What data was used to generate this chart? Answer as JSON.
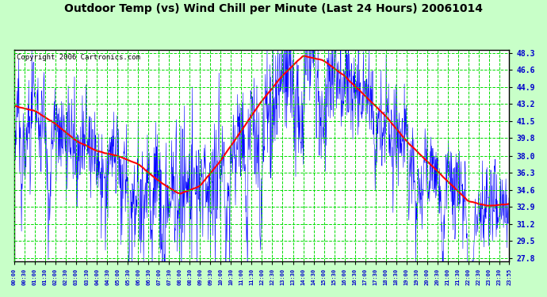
{
  "title": "Outdoor Temp (vs) Wind Chill per Minute (Last 24 Hours) 20061014",
  "copyright_text": "Copyright 2006 Cartronics.com",
  "yticks": [
    27.8,
    29.5,
    31.2,
    32.9,
    34.6,
    36.3,
    38.0,
    39.8,
    41.5,
    43.2,
    44.9,
    46.6,
    48.3
  ],
  "ylim_low": 27.8,
  "ylim_high": 48.3,
  "bg_color": "#ffffff",
  "outer_bg": "#c8ffc8",
  "grid_color": "#00dd00",
  "title_fontsize": 10,
  "copyright_fontsize": 6.5,
  "tick_label_color": "#0000cc",
  "line_blue_color": "#0000ff",
  "line_red_color": "#ff0000",
  "n_minutes": 1440,
  "seed": 42,
  "red_ctrl_hours": [
    0,
    1,
    2,
    3,
    4,
    5,
    6,
    7,
    8,
    9,
    10,
    11,
    12,
    13,
    14,
    15,
    16,
    17,
    18,
    19,
    20,
    21,
    22,
    23,
    24
  ],
  "red_ctrl_temps": [
    43.0,
    42.5,
    41.2,
    39.5,
    38.5,
    38.0,
    37.2,
    35.5,
    34.2,
    35.0,
    37.5,
    40.5,
    43.5,
    46.0,
    48.0,
    47.5,
    46.0,
    44.0,
    42.0,
    39.5,
    37.5,
    35.5,
    33.5,
    33.0,
    33.2
  ]
}
